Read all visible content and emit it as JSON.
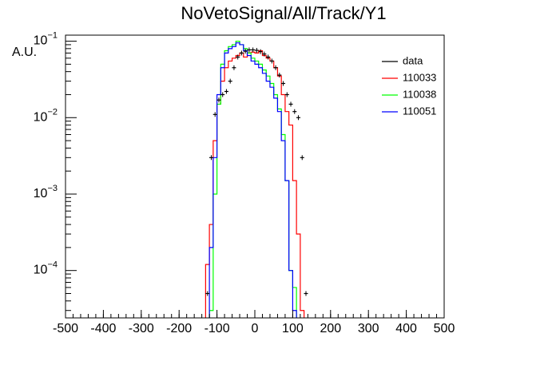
{
  "chart_data": {
    "type": "histogram",
    "title": "NoVetoSignal/All/Track/Y1",
    "y_label": "A.U.",
    "log_y": true,
    "xlim": [
      -500,
      500
    ],
    "xticks": [
      -500,
      -400,
      -300,
      -200,
      -100,
      0,
      100,
      200,
      300,
      400,
      500
    ],
    "ylim": [
      2.4e-05,
      0.12
    ],
    "yticks": [
      {
        "value": 0.0001,
        "label": "10",
        "exponent": "−4"
      },
      {
        "value": 0.001,
        "label": "10",
        "exponent": "−3"
      },
      {
        "value": 0.01,
        "label": "10",
        "exponent": "−2"
      },
      {
        "value": 0.1,
        "label": "10",
        "exponent": "−1"
      }
    ],
    "legend_position": "upper right",
    "bins": [
      -130,
      -120,
      -110,
      -100,
      -90,
      -80,
      -70,
      -60,
      -50,
      -40,
      -30,
      -20,
      -10,
      0,
      10,
      20,
      30,
      40,
      50,
      60,
      70,
      80,
      90,
      100,
      110,
      120,
      130,
      140
    ],
    "data": {
      "name": "data",
      "color": "#000000",
      "x": [
        -125,
        -115,
        -105,
        -95,
        -85,
        -75,
        -65,
        -55,
        -45,
        -35,
        -25,
        -15,
        -5,
        5,
        15,
        25,
        35,
        45,
        55,
        65,
        75,
        85,
        95,
        105,
        115,
        125,
        135
      ],
      "values": [
        5e-05,
        0.003,
        0.011,
        0.017,
        0.02,
        0.022,
        0.03,
        0.045,
        0.062,
        0.07,
        0.074,
        0.077,
        0.077,
        0.076,
        0.073,
        0.068,
        0.062,
        0.055,
        0.045,
        0.036,
        0.028,
        0.02,
        0.015,
        0.012,
        0.01,
        0.003,
        5e-05
      ]
    },
    "series": [
      {
        "name": "110033",
        "color": "#ff0000",
        "values": [
          0.00012,
          0.0004,
          0.005,
          0.015,
          0.03,
          0.045,
          0.055,
          0.06,
          0.065,
          0.07,
          0.062,
          0.07,
          0.072,
          0.07,
          0.075,
          0.065,
          0.06,
          0.055,
          0.045,
          0.035,
          0.02,
          0.012,
          0.008,
          0.0015,
          0.0003,
          3e-05,
          2e-05
        ]
      },
      {
        "name": "110038",
        "color": "#00ff00",
        "values": [
          2e-05,
          3e-05,
          0.001,
          0.015,
          0.05,
          0.075,
          0.085,
          0.09,
          0.1,
          0.09,
          0.08,
          0.07,
          0.06,
          0.055,
          0.05,
          0.042,
          0.035,
          0.028,
          0.02,
          0.013,
          0.006,
          0.0015,
          0.0001,
          6e-05,
          2e-05,
          2e-05,
          2e-05
        ]
      },
      {
        "name": "110051",
        "color": "#0000ff",
        "values": [
          2e-05,
          0.0002,
          0.003,
          0.02,
          0.045,
          0.07,
          0.08,
          0.085,
          0.095,
          0.09,
          0.075,
          0.065,
          0.055,
          0.05,
          0.045,
          0.038,
          0.03,
          0.025,
          0.018,
          0.012,
          0.005,
          0.0015,
          0.0001,
          3e-05,
          2e-05,
          2e-05,
          2e-05
        ]
      }
    ]
  }
}
